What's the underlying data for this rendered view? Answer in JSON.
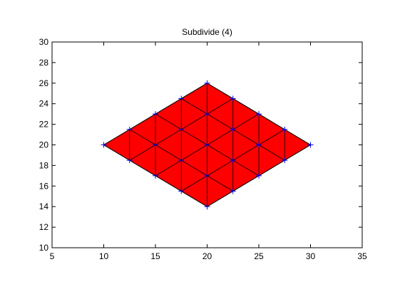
{
  "chart_data": {
    "type": "scatter",
    "title": "Subdivide (4)",
    "xlabel": "",
    "ylabel": "",
    "xlim": [
      5,
      35
    ],
    "ylim": [
      10,
      30
    ],
    "xticks": [
      5,
      10,
      15,
      20,
      25,
      30,
      35
    ],
    "yticks": [
      10,
      12,
      14,
      16,
      18,
      20,
      22,
      24,
      26,
      28,
      30
    ],
    "grid": false,
    "face_color": "#ff0000",
    "edge_color": "#000000",
    "marker_color": "#0000ff",
    "marker": "+",
    "polygon": [
      [
        10,
        20
      ],
      [
        20,
        26
      ],
      [
        30,
        20
      ],
      [
        20,
        14
      ]
    ],
    "points": [
      [
        10,
        20
      ],
      [
        12.5,
        21.5
      ],
      [
        15,
        23
      ],
      [
        17.5,
        24.5
      ],
      [
        20,
        26
      ],
      [
        12.5,
        18.5
      ],
      [
        15,
        20
      ],
      [
        17.5,
        21.5
      ],
      [
        20,
        23
      ],
      [
        22.5,
        24.5
      ],
      [
        15,
        17
      ],
      [
        17.5,
        18.5
      ],
      [
        20,
        20
      ],
      [
        22.5,
        21.5
      ],
      [
        25,
        23
      ],
      [
        17.5,
        15.5
      ],
      [
        20,
        17
      ],
      [
        22.5,
        18.5
      ],
      [
        25,
        20
      ],
      [
        27.5,
        21.5
      ],
      [
        20,
        14
      ],
      [
        22.5,
        15.5
      ],
      [
        25,
        17
      ],
      [
        27.5,
        18.5
      ],
      [
        30,
        20
      ]
    ]
  }
}
